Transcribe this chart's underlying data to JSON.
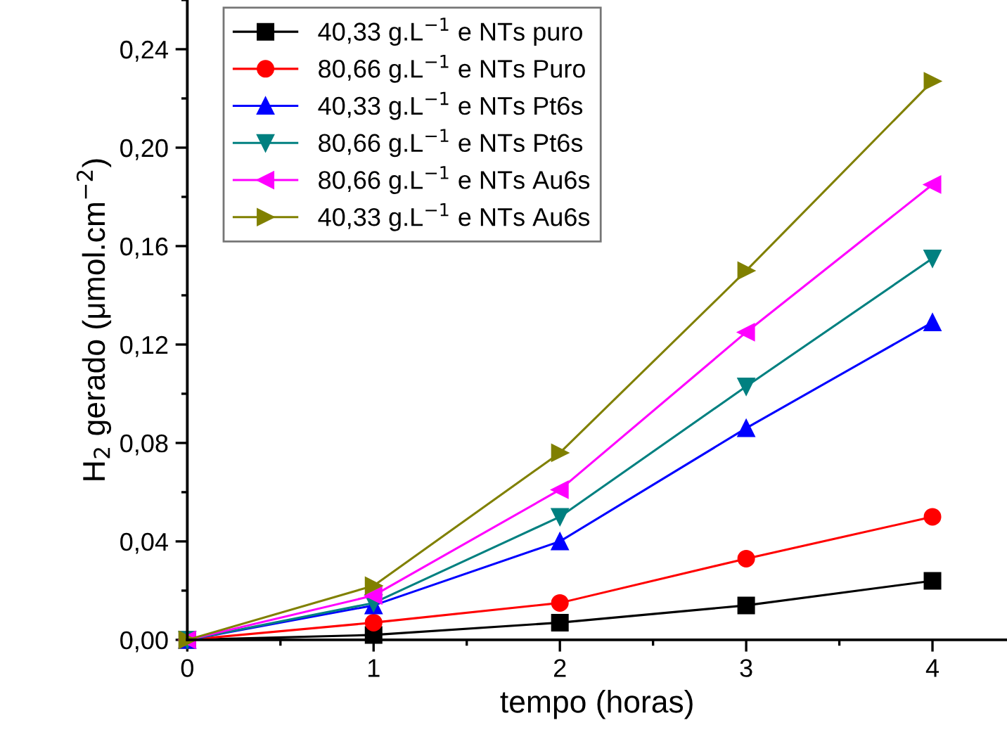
{
  "chart_data": {
    "type": "line",
    "xlabel": "tempo (horas)",
    "ylabel": "H$_{2}$ gerado (μmol.cm$^{−2}$)",
    "x": [
      0,
      1,
      2,
      3,
      4
    ],
    "series": [
      {
        "name": "40,33 g.L$^{−1}$ e NTs puro",
        "color": "#000000",
        "marker": "square",
        "values": [
          0,
          0.002,
          0.007,
          0.014,
          0.024
        ]
      },
      {
        "name": "80,66 g.L$^{−1}$ e NTs Puro",
        "color": "#ff0000",
        "marker": "circle",
        "values": [
          0,
          0.007,
          0.015,
          0.033,
          0.05
        ]
      },
      {
        "name": "40,33 g.L$^{−1}$ e NTs Pt6s",
        "color": "#0000ff",
        "marker": "triangle",
        "values": [
          0,
          0.014,
          0.04,
          0.086,
          0.129
        ]
      },
      {
        "name": "80,66 g.L$^{−1}$ e NTs Pt6s",
        "color": "#008080",
        "marker": "triangle_down",
        "values": [
          0,
          0.015,
          0.05,
          0.103,
          0.155
        ]
      },
      {
        "name": "80,66 g.L$^{−1}$ e NTs Au6s",
        "color": "#ff00ff",
        "marker": "triangle_left",
        "values": [
          0,
          0.018,
          0.061,
          0.125,
          0.185
        ]
      },
      {
        "name": "40,33 g.L$^{−1}$ e NTs Au6s",
        "color": "#808000",
        "marker": "triangle_right",
        "values": [
          0,
          0.022,
          0.076,
          0.15,
          0.227
        ]
      }
    ],
    "xlim": [
      0,
      4.4
    ],
    "xticks": [
      0,
      1,
      2,
      3,
      4
    ],
    "ylim": [
      0,
      0.26
    ],
    "yticks": [
      {
        "value": 0,
        "label": "0,00"
      },
      {
        "value": 0.04,
        "label": "0,04"
      },
      {
        "value": 0.08,
        "label": "0,08"
      },
      {
        "value": 0.12,
        "label": "0,12"
      },
      {
        "value": 0.16,
        "label": "0,16"
      },
      {
        "value": 0.2,
        "label": "0,20"
      },
      {
        "value": 0.24,
        "label": "0,24"
      }
    ],
    "grid": false,
    "legend": "top left",
    "line_style": "solid"
  }
}
